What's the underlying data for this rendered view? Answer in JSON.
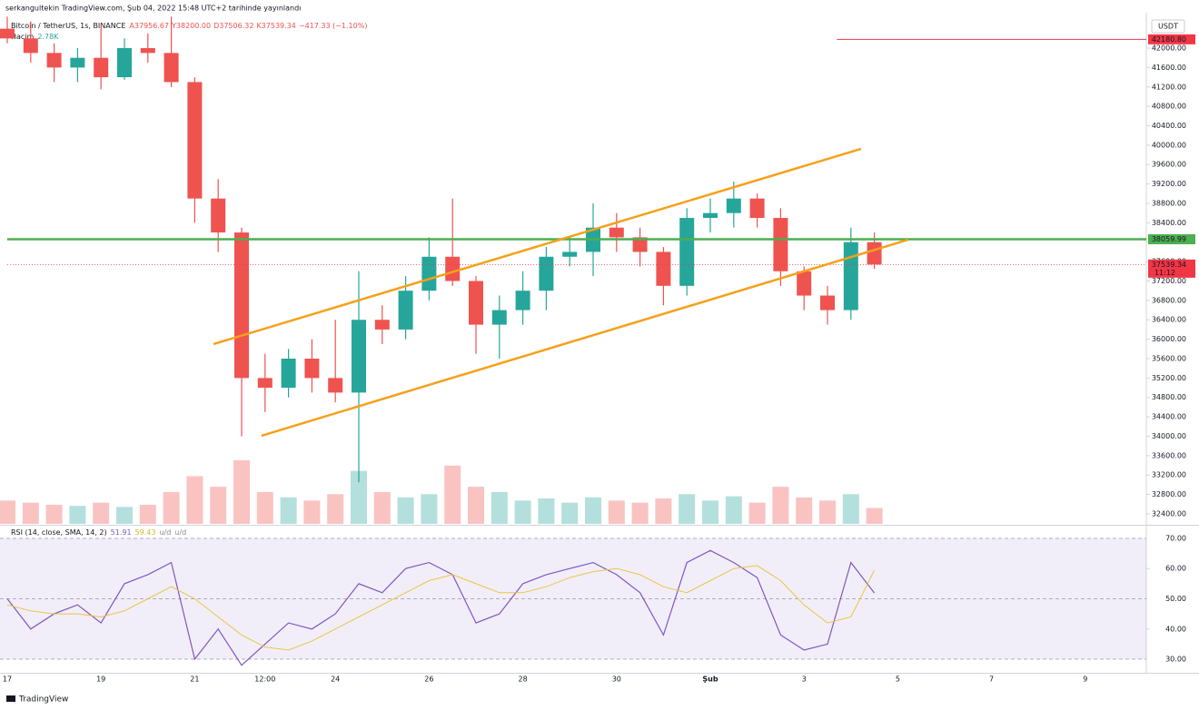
{
  "header": {
    "published": "serkangultekin TradingView.com, Şub 04, 2022 15:48 UTC+2 tarihinde yayınlandı",
    "symbol": "Bitcoin / TetherUS, 1s, BINANCE",
    "ohlc": [
      "A37956.67",
      "Y38200.00",
      "D37506.32",
      "K37539.34",
      "−417.33 (−1.10%)"
    ],
    "currency": "USDT",
    "footer": "TradingView"
  },
  "chart_data": [
    {
      "type": "candlestick",
      "categories": [
        "17",
        null,
        null,
        null,
        "19",
        null,
        null,
        null,
        "21",
        null,
        null,
        "12:00",
        null,
        null,
        "24",
        null,
        null,
        null,
        "26",
        null,
        null,
        null,
        "28",
        null,
        null,
        null,
        "30",
        null,
        null,
        null,
        "Şub",
        null,
        null,
        null,
        "3",
        null,
        null,
        null,
        "5",
        null,
        null,
        null,
        "7",
        null,
        null,
        null,
        "9",
        null,
        null
      ],
      "open": [
        42400,
        42200,
        41900,
        41600,
        41800,
        41400,
        42000,
        41900,
        41300,
        38900,
        38200,
        35200,
        35000,
        35600,
        35200,
        34900,
        36400,
        36200,
        37000,
        37700,
        37200,
        36300,
        36600,
        37000,
        37700,
        37800,
        38300,
        38100,
        37800,
        37100,
        38500,
        38600,
        38900,
        38500,
        37400,
        36900,
        36600,
        38000,
        null,
        null,
        null,
        null,
        null,
        null,
        null,
        null,
        null,
        null,
        null
      ],
      "high": [
        42650,
        42550,
        42100,
        42000,
        42500,
        42200,
        42300,
        42650,
        41400,
        39300,
        38300,
        35700,
        35800,
        36000,
        36400,
        37400,
        36700,
        37300,
        38100,
        38900,
        37300,
        36900,
        37400,
        37900,
        38100,
        38800,
        38600,
        38300,
        37900,
        38700,
        38900,
        39250,
        39000,
        38700,
        37500,
        37100,
        38300,
        38200,
        null,
        null,
        null,
        null,
        null,
        null,
        null,
        null,
        null,
        null,
        null
      ],
      "low": [
        42100,
        41700,
        41300,
        41300,
        41150,
        41350,
        41700,
        41200,
        38400,
        37800,
        34000,
        34500,
        34800,
        34900,
        34700,
        33050,
        35900,
        36000,
        36800,
        37100,
        35700,
        35600,
        36300,
        36600,
        37500,
        37300,
        37800,
        37500,
        36700,
        36900,
        38200,
        38300,
        38300,
        37100,
        36600,
        36300,
        36400,
        37450,
        null,
        null,
        null,
        null,
        null,
        null,
        null,
        null,
        null,
        null,
        null
      ],
      "close": [
        42200,
        41900,
        41600,
        41800,
        41400,
        42000,
        41900,
        41300,
        38900,
        38200,
        35200,
        35000,
        35600,
        35200,
        34900,
        36400,
        36200,
        37000,
        37700,
        37200,
        36300,
        36600,
        37000,
        37700,
        37800,
        38300,
        38100,
        37800,
        37100,
        38500,
        38600,
        38900,
        38500,
        37400,
        36900,
        36600,
        38000,
        37539.34,
        null,
        null,
        null,
        null,
        null,
        null,
        null,
        null,
        null,
        null,
        null
      ],
      "up_color": "#26a69a",
      "down_color": "#ef5350",
      "volume": {
        "name": "Hacim",
        "last_label": "2.78K",
        "values": [
          22,
          20,
          18,
          17,
          20,
          16,
          18,
          30,
          45,
          35,
          60,
          30,
          25,
          22,
          28,
          50,
          30,
          25,
          28,
          55,
          35,
          30,
          22,
          24,
          20,
          25,
          22,
          20,
          24,
          28,
          22,
          26,
          20,
          35,
          25,
          22,
          28,
          15,
          null,
          null,
          null,
          null,
          null,
          null,
          null,
          null,
          null,
          null,
          null
        ]
      },
      "ylim": [
        32194,
        42655
      ],
      "yticks": [
        {
          "value": 32400,
          "label": "32400.00"
        },
        {
          "value": 32800,
          "label": "32800.00"
        },
        {
          "value": 33200,
          "label": "33200.00"
        },
        {
          "value": 33600,
          "label": "33600.00"
        },
        {
          "value": 34000,
          "label": "34000.00"
        },
        {
          "value": 34400,
          "label": "34400.00"
        },
        {
          "value": 34800,
          "label": "34800.00"
        },
        {
          "value": 35200,
          "label": "35200.00"
        },
        {
          "value": 35600,
          "label": "35600.00"
        },
        {
          "value": 36000,
          "label": "36000.00"
        },
        {
          "value": 36400,
          "label": "36400.00"
        },
        {
          "value": 36800,
          "label": "36800.00"
        },
        {
          "value": 37200,
          "label": "37200.00"
        },
        {
          "value": 37600,
          "label": "37600.00"
        },
        {
          "value": 38000,
          "label": "38000.00"
        },
        {
          "value": 38400,
          "label": "38400.00"
        },
        {
          "value": 38800,
          "label": "38800.00"
        },
        {
          "value": 39200,
          "label": "39200.00"
        },
        {
          "value": 39600,
          "label": "39600.00"
        },
        {
          "value": 40000,
          "label": "40000.00"
        },
        {
          "value": 40400,
          "label": "40400.00"
        },
        {
          "value": 40800,
          "label": "40800.00"
        },
        {
          "value": 41200,
          "label": "41200.00"
        },
        {
          "value": 41600,
          "label": "41600.00"
        },
        {
          "value": 42000,
          "label": "42000.00"
        }
      ],
      "levels": [
        {
          "value": 42180.8,
          "label": "42180.80",
          "color": "#f23645",
          "from": 35.4
        },
        {
          "value": 38059.99,
          "label": "38059.99",
          "color": "#4caf50",
          "from": 0
        },
        {
          "value": 37539.34,
          "label": "37539.34",
          "countdown": "11:12",
          "color": "#f23645",
          "from": 0
        }
      ],
      "trendlines": [
        {
          "color": "#f5a01a",
          "x": [
            8.8,
            36.43
          ],
          "y": [
            35900,
            39923
          ]
        },
        {
          "color": "#f5a01a",
          "x": [
            10.85,
            38.45
          ],
          "y": [
            34011,
            38052
          ]
        }
      ]
    },
    {
      "type": "line",
      "title": "RSI (14, close, SMA, 14, 2)",
      "extra_labels": [
        "u/d",
        "u/d"
      ],
      "series": [
        {
          "name": "RSI",
          "color": "#7e57c2",
          "values": [
            50,
            40,
            45,
            48,
            42,
            55,
            58,
            62,
            30,
            40,
            28,
            35,
            42,
            40,
            45,
            55,
            52,
            60,
            62,
            58,
            42,
            45,
            55,
            58,
            60,
            62,
            58,
            52,
            38,
            62,
            66,
            62,
            57,
            38,
            33,
            35,
            62,
            51.91,
            null,
            null,
            null,
            null,
            null,
            null,
            null,
            null,
            null,
            null,
            null
          ]
        },
        {
          "name": "SMA",
          "color": "#e8c547",
          "values": [
            48,
            46,
            45,
            45,
            44,
            46,
            50,
            54,
            50,
            44,
            38,
            34,
            33,
            36,
            40,
            44,
            48,
            52,
            56,
            58,
            55,
            52,
            52,
            54,
            57,
            59,
            60,
            58,
            54,
            52,
            56,
            60,
            61,
            56,
            48,
            42,
            44,
            59.43,
            null,
            null,
            null,
            null,
            null,
            null,
            null,
            null,
            null,
            null,
            null
          ]
        }
      ],
      "band": [
        30,
        70
      ],
      "ylim": [
        25.8,
        73.9
      ],
      "yticks": [
        {
          "value": 30,
          "label": "30.00"
        },
        {
          "value": 40,
          "label": "40.00"
        },
        {
          "value": 50,
          "label": "50.00"
        },
        {
          "value": 60,
          "label": "60.00"
        },
        {
          "value": 70,
          "label": "70.00"
        }
      ]
    }
  ]
}
